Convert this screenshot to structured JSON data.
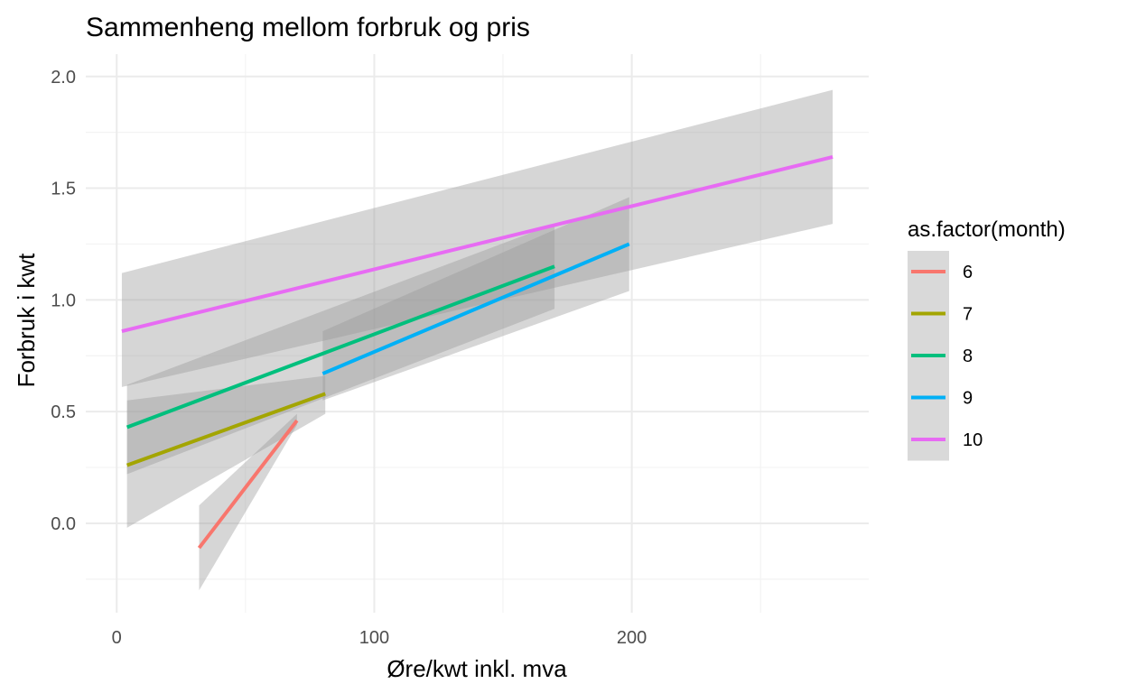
{
  "chart_data": {
    "type": "line",
    "title": "Sammenheng mellom forbruk og pris",
    "xlabel": "Øre/kwt inkl. mva",
    "ylabel": "Forbruk i kwt",
    "xlim": [
      -12,
      292
    ],
    "ylim": [
      -0.4,
      2.1
    ],
    "xticks": [
      0,
      100,
      200
    ],
    "yticks": [
      0.0,
      0.5,
      1.0,
      1.5,
      2.0
    ],
    "ytick_labels": [
      "0.0",
      "0.5",
      "1.0",
      "1.5",
      "2.0"
    ],
    "grid": true,
    "legend": {
      "title": "as.factor(month)",
      "position": "right"
    },
    "series": [
      {
        "name": "6",
        "color": "#F8766D",
        "x": [
          32,
          70
        ],
        "y": [
          -0.11,
          0.46
        ],
        "band_x": [
          32,
          70
        ],
        "band_lower": [
          -0.3,
          0.44
        ],
        "band_upper": [
          0.08,
          0.49
        ]
      },
      {
        "name": "7",
        "color": "#A3A500",
        "x": [
          4,
          81
        ],
        "y": [
          0.26,
          0.58
        ],
        "band_x": [
          4,
          81
        ],
        "band_lower": [
          -0.02,
          0.49
        ],
        "band_upper": [
          0.55,
          0.66
        ]
      },
      {
        "name": "8",
        "color": "#00BF7D",
        "x": [
          4,
          170
        ],
        "y": [
          0.43,
          1.15
        ],
        "band_x": [
          4,
          170
        ],
        "band_lower": [
          0.22,
          0.96
        ],
        "band_upper": [
          0.62,
          1.34
        ]
      },
      {
        "name": "9",
        "color": "#00B0F6",
        "x": [
          80,
          199
        ],
        "y": [
          0.67,
          1.25
        ],
        "band_x": [
          80,
          199
        ],
        "band_lower": [
          0.55,
          1.04
        ],
        "band_upper": [
          0.86,
          1.46
        ]
      },
      {
        "name": "10",
        "color": "#E76BF3",
        "x": [
          2,
          278
        ],
        "y": [
          0.86,
          1.64
        ],
        "band_x": [
          2,
          278
        ],
        "band_lower": [
          0.61,
          1.34
        ],
        "band_upper": [
          1.12,
          1.94
        ]
      }
    ]
  }
}
